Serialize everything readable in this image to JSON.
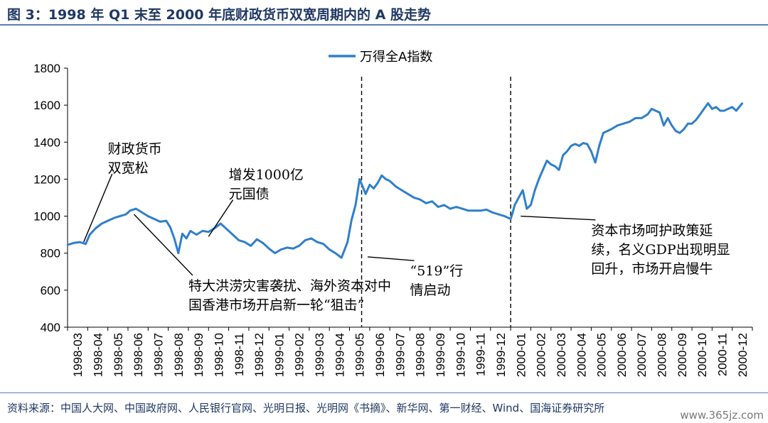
{
  "title": "图 3：1998 年 Q1 末至 2000 年底财政货币双宽周期内的 A 股走势",
  "source": "资料来源：中国人大网、中国政府网、人民银行官网、光明日报、光明网《书摘》、新华网、第一财经、Wind、国海证券研究所",
  "watermark": "www.365jz.com",
  "chart_data": {
    "type": "line",
    "legend_position": "top-center",
    "grid": false,
    "ylim": [
      400,
      1800
    ],
    "yticks": [
      400,
      600,
      800,
      1000,
      1200,
      1400,
      1600,
      1800
    ],
    "categories": [
      "1998-03",
      "1998-04",
      "1998-05",
      "1998-06",
      "1998-07",
      "1998-08",
      "1998-09",
      "1998-10",
      "1998-11",
      "1998-12",
      "1999-01",
      "1999-02",
      "1999-03",
      "1999-04",
      "1999-05",
      "1999-06",
      "1999-07",
      "1999-08",
      "1999-09",
      "1999-10",
      "1999-11",
      "1999-12",
      "2000-01",
      "2000-02",
      "2000-03",
      "2000-04",
      "2000-05",
      "2000-06",
      "2000-07",
      "2000-08",
      "2000-09",
      "2000-10",
      "2000-11",
      "2000-12"
    ],
    "series": [
      {
        "name": "万得全A指数",
        "color": "#2f7fcb",
        "x": [
          0,
          0.3,
          0.6,
          0.9,
          1.1,
          1.4,
          1.7,
          2.0,
          2.3,
          2.6,
          2.9,
          3.1,
          3.4,
          3.7,
          4.0,
          4.3,
          4.6,
          4.9,
          5.1,
          5.3,
          5.5,
          5.7,
          5.9,
          6.1,
          6.4,
          6.7,
          7.0,
          7.3,
          7.6,
          7.9,
          8.2,
          8.5,
          8.8,
          9.1,
          9.4,
          9.7,
          10.0,
          10.3,
          10.6,
          10.9,
          11.2,
          11.5,
          11.8,
          12.1,
          12.4,
          12.7,
          13.0,
          13.3,
          13.6,
          13.9,
          14.1,
          14.3,
          14.5,
          14.8,
          15.0,
          15.2,
          15.4,
          15.6,
          15.8,
          16.0,
          16.3,
          16.6,
          16.9,
          17.2,
          17.5,
          17.8,
          18.1,
          18.4,
          18.7,
          19.0,
          19.3,
          19.6,
          19.9,
          20.2,
          20.5,
          20.8,
          21.1,
          21.4,
          21.7,
          22.0,
          22.1,
          22.2,
          22.4,
          22.6,
          22.8,
          23.0,
          23.2,
          23.4,
          23.6,
          23.8,
          24.0,
          24.2,
          24.4,
          24.6,
          24.8,
          25.0,
          25.2,
          25.4,
          25.6,
          25.8,
          26.0,
          26.2,
          26.4,
          26.6,
          26.8,
          27.0,
          27.3,
          27.6,
          27.9,
          28.2,
          28.5,
          28.8,
          29.0,
          29.2,
          29.4,
          29.6,
          29.8,
          30.0,
          30.2,
          30.4,
          30.6,
          30.8,
          31.0,
          31.2,
          31.4,
          31.6,
          31.8,
          32.0,
          32.2,
          32.4,
          32.6,
          32.8,
          33.0,
          33.2,
          33.5
        ],
        "values": [
          845,
          855,
          860,
          850,
          900,
          935,
          960,
          975,
          990,
          1000,
          1010,
          1030,
          1040,
          1020,
          1000,
          985,
          970,
          975,
          940,
          880,
          800,
          905,
          880,
          920,
          900,
          920,
          915,
          935,
          960,
          930,
          900,
          870,
          860,
          840,
          875,
          855,
          825,
          800,
          820,
          830,
          825,
          840,
          870,
          880,
          860,
          850,
          820,
          800,
          775,
          860,
          980,
          1060,
          1200,
          1120,
          1170,
          1150,
          1180,
          1220,
          1200,
          1190,
          1160,
          1140,
          1120,
          1100,
          1090,
          1070,
          1080,
          1050,
          1060,
          1040,
          1050,
          1040,
          1030,
          1030,
          1030,
          1035,
          1020,
          1010,
          1000,
          985,
          1020,
          1060,
          1100,
          1140,
          1040,
          1060,
          1140,
          1200,
          1250,
          1300,
          1280,
          1270,
          1250,
          1330,
          1350,
          1380,
          1390,
          1380,
          1395,
          1390,
          1350,
          1290,
          1380,
          1450,
          1460,
          1470,
          1490,
          1500,
          1510,
          1530,
          1530,
          1550,
          1580,
          1570,
          1560,
          1490,
          1530,
          1490,
          1460,
          1450,
          1470,
          1500,
          1500,
          1520,
          1550,
          1580,
          1610,
          1580,
          1590,
          1570,
          1570,
          1580,
          1590,
          1570,
          1610
        ]
      }
    ],
    "event_lines": [
      {
        "x": 14.6,
        "label": "1999-05-19"
      },
      {
        "x": 22.0,
        "label": "2000-01"
      }
    ],
    "annotations": [
      {
        "lines": [
          "财政货币",
          "双宽松"
        ],
        "point": [
          0.8,
          860
        ],
        "text_pos": [
          2.0,
          1420
        ]
      },
      {
        "lines": [
          "增发1000亿",
          "元国债"
        ],
        "point": [
          7.0,
          890
        ],
        "text_pos": [
          8.0,
          1280
        ]
      },
      {
        "lines": [
          "特大洪涝灾害袭扰、海外资本对中",
          "国香港市场开启新一轮“狙击”"
        ],
        "point": [
          3.3,
          1010
        ],
        "text_pos": [
          6.0,
          680
        ]
      },
      {
        "lines": [
          "“519”行",
          "情启动"
        ],
        "point": [
          14.9,
          780
        ],
        "text_pos": [
          17.0,
          760
        ]
      },
      {
        "lines": [
          "资本市场呵护政策延",
          "续，名义GDP出现明显",
          "回升，市场开启慢牛"
        ],
        "point": [
          22.5,
          1000
        ],
        "text_pos": [
          26.0,
          980
        ]
      }
    ]
  }
}
